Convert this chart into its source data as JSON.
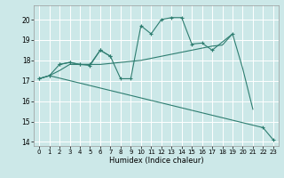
{
  "xlabel": "Humidex (Indice chaleur)",
  "bg_color": "#cce8e8",
  "grid_color": "#ffffff",
  "line_color": "#2e7d70",
  "xlim": [
    -0.5,
    23.5
  ],
  "ylim": [
    13.8,
    20.7
  ],
  "yticks": [
    14,
    15,
    16,
    17,
    18,
    19,
    20
  ],
  "xticks": [
    0,
    1,
    2,
    3,
    4,
    5,
    6,
    7,
    8,
    9,
    10,
    11,
    12,
    13,
    14,
    15,
    16,
    17,
    18,
    19,
    20,
    21,
    22,
    23
  ],
  "series": [
    {
      "x": [
        0,
        1,
        22,
        23
      ],
      "y": [
        17.1,
        17.25,
        14.7,
        14.1
      ],
      "markers": true,
      "linestyle": "-"
    },
    {
      "x": [
        0,
        1,
        2,
        3,
        4,
        5,
        6,
        7,
        8,
        9,
        10,
        11,
        12,
        13,
        14,
        15,
        16,
        17,
        18,
        19,
        20,
        21
      ],
      "y": [
        17.1,
        17.25,
        17.5,
        17.8,
        17.8,
        17.8,
        17.8,
        17.85,
        17.9,
        17.95,
        18.0,
        18.1,
        18.2,
        18.3,
        18.4,
        18.5,
        18.6,
        18.7,
        18.75,
        19.3,
        17.6,
        15.6
      ],
      "markers": false,
      "linestyle": "-"
    },
    {
      "x": [
        0,
        1,
        2,
        3,
        4,
        5,
        6,
        7,
        8,
        9,
        10,
        11,
        12,
        13,
        14,
        15,
        16,
        17,
        19
      ],
      "y": [
        17.1,
        17.25,
        17.8,
        17.9,
        17.8,
        17.75,
        18.5,
        18.2,
        17.1,
        17.1,
        19.7,
        19.3,
        20.0,
        20.1,
        20.1,
        18.8,
        18.85,
        18.5,
        19.3
      ],
      "markers": true,
      "linestyle": "-"
    },
    {
      "x": [
        2,
        3,
        4,
        5,
        6,
        7
      ],
      "y": [
        17.8,
        17.9,
        17.8,
        17.8,
        18.5,
        18.2
      ],
      "markers": true,
      "linestyle": "-"
    }
  ]
}
